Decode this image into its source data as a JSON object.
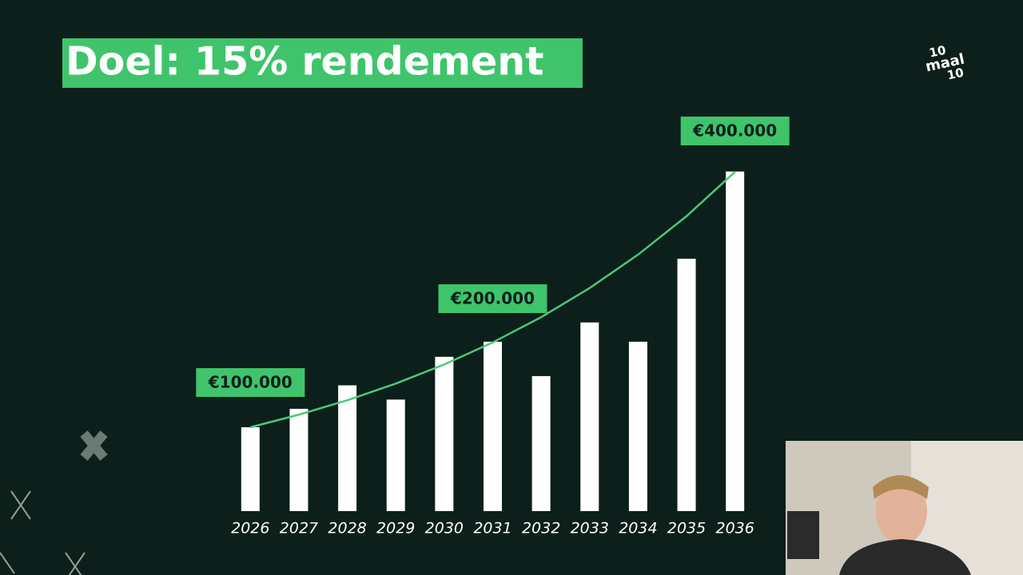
{
  "chart_data": {
    "type": "bar",
    "title": "Doel: 15% rendement",
    "categories": [
      "2026",
      "2027",
      "2028",
      "2029",
      "2030",
      "2031",
      "2032",
      "2033",
      "2034",
      "2035",
      "2036"
    ],
    "series": [
      {
        "type": "bar",
        "color": "#ffffff",
        "values": [
          100000,
          122000,
          150000,
          133000,
          184000,
          202000,
          161000,
          225000,
          202000,
          301000,
          405000
        ]
      },
      {
        "type": "line",
        "color": "#4cc77a",
        "values": [
          100000,
          115000,
          132250,
          152088,
          174901,
          201136,
          231306,
          266002,
          305902,
          351788,
          404556
        ]
      }
    ],
    "ylim": [
      0,
      400000
    ],
    "annotations": [
      {
        "label": "€100.000",
        "value": 100000,
        "category": "2026"
      },
      {
        "label": "€200.000",
        "value": 200000,
        "category": "2031"
      },
      {
        "label": "€400.000",
        "value": 400000,
        "category": "2036"
      }
    ]
  },
  "logo": {
    "top": "10",
    "middle": "maal",
    "bottom": "10"
  }
}
